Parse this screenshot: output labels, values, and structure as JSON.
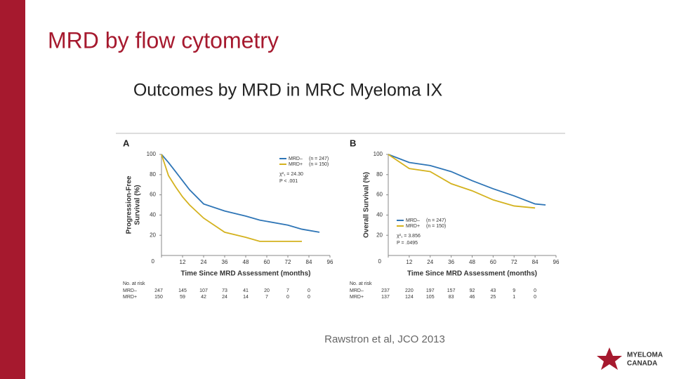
{
  "slide": {
    "title": "MRD by flow cytometry",
    "subtitle": "Outcomes by MRD in MRC Myeloma IX",
    "citation": "Rawstron et al, JCO 2013",
    "logo": [
      "MYELOMA",
      "CANADA"
    ]
  },
  "chart_data": [
    {
      "type": "line",
      "panel": "A",
      "ylabel": [
        "Progression-Free",
        "Survival (%)"
      ],
      "xlabel": "Time Since MRD Assessment (months)",
      "x": [
        0,
        4,
        8,
        12,
        16,
        24,
        36,
        48,
        56,
        72,
        80,
        90
      ],
      "series": [
        {
          "name": "MRD–",
          "n_label": "(n = 247)",
          "color": "#2e75b6",
          "values": [
            100,
            92,
            83,
            74,
            65,
            51,
            44,
            39,
            35,
            30,
            26,
            23
          ]
        },
        {
          "name": "MRD+",
          "n_label": "(n = 150)",
          "color": "#d4b21e",
          "values": [
            100,
            79,
            68,
            58,
            50,
            37,
            23,
            18,
            14,
            14,
            14,
            null
          ]
        }
      ],
      "annotations": [
        "χ²₁ = 24.30",
        "P < .001"
      ],
      "xlim": [
        0,
        96
      ],
      "xticks": [
        0,
        12,
        24,
        36,
        48,
        60,
        72,
        84,
        96
      ],
      "ylim": [
        0,
        100
      ],
      "yticks": [
        20,
        40,
        60,
        80,
        100
      ],
      "risk_table": {
        "title": "No. at risk",
        "rows": [
          {
            "name": "MRD–",
            "values": [
              247,
              145,
              107,
              73,
              41,
              20,
              7,
              0
            ]
          },
          {
            "name": "MRD+",
            "values": [
              150,
              59,
              42,
              24,
              14,
              7,
              0,
              0
            ]
          }
        ]
      }
    },
    {
      "type": "line",
      "panel": "B",
      "ylabel": [
        "Overall Survival (%)"
      ],
      "xlabel": "Time Since MRD Assessment (months)",
      "x": [
        0,
        12,
        24,
        36,
        48,
        60,
        72,
        84,
        90
      ],
      "series": [
        {
          "name": "MRD–",
          "n_label": "(n = 247)",
          "color": "#2e75b6",
          "values": [
            100,
            92,
            89,
            83,
            74,
            66,
            59,
            51,
            50
          ]
        },
        {
          "name": "MRD+",
          "n_label": "(n = 150)",
          "color": "#d4b21e",
          "values": [
            100,
            86,
            83,
            71,
            64,
            55,
            49,
            47,
            null
          ]
        }
      ],
      "annotations": [
        "χ²₁ = 3.856",
        "P = .0495"
      ],
      "xlim": [
        0,
        96
      ],
      "xticks": [
        0,
        12,
        24,
        36,
        48,
        60,
        72,
        84,
        96
      ],
      "ylim": [
        0,
        100
      ],
      "yticks": [
        20,
        40,
        60,
        80,
        100
      ],
      "risk_table": {
        "title": "No. at risk",
        "rows": [
          {
            "name": "MRD–",
            "values": [
              237,
              220,
              197,
              157,
              92,
              43,
              9,
              0
            ]
          },
          {
            "name": "MRD+",
            "values": [
              137,
              124,
              105,
              83,
              46,
              25,
              1,
              0
            ]
          }
        ]
      }
    }
  ]
}
